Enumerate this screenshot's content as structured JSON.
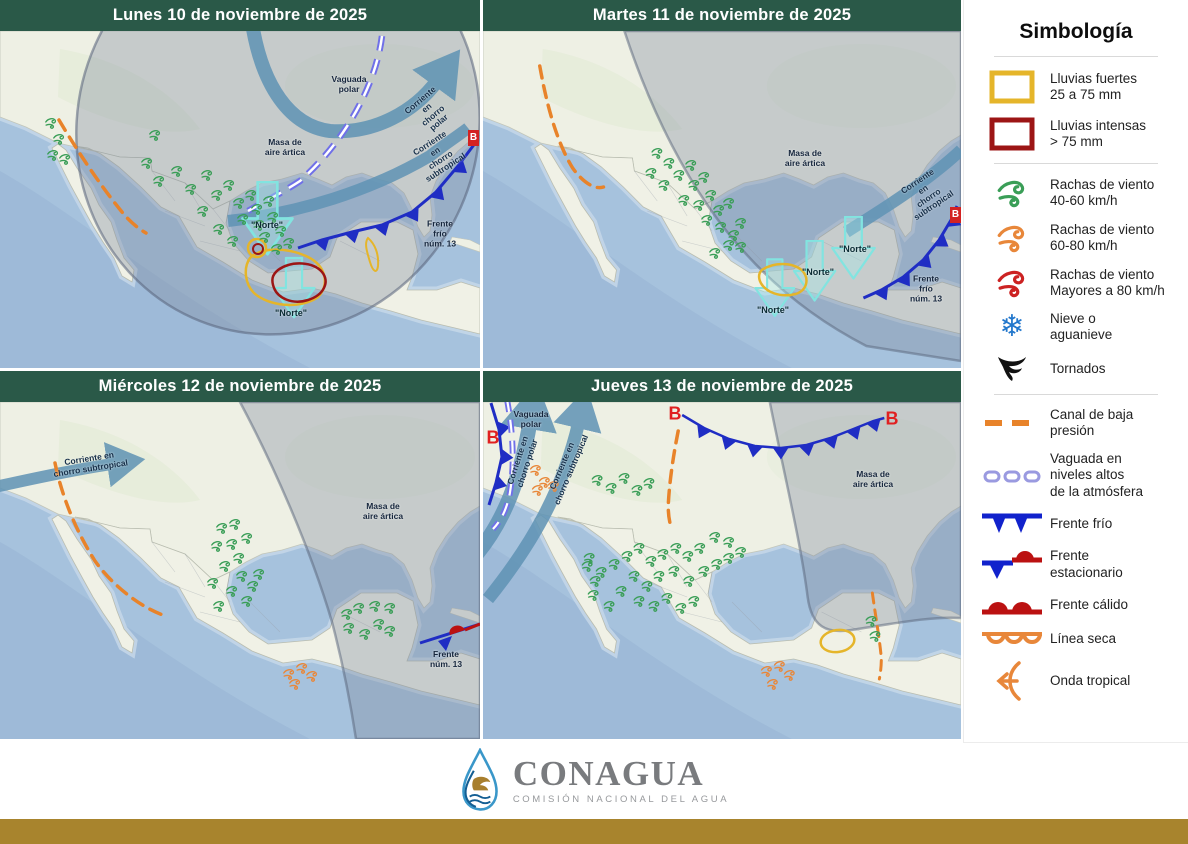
{
  "panels": [
    {
      "title": "Lunes 10 de noviembre de 2025",
      "labels": {
        "vaguada_polar": "Vaguada\npolar",
        "chorro_polar": "Corriente en\nchorro polar",
        "chorro_subtropical": "Corriente en\nchorro subtropical",
        "masa_artica": "Masa de\naire ártica",
        "norte1": "\"Norte\"",
        "norte2": "\"Norte\"",
        "frente": "Frente frío\nnúm. 13",
        "baja": "B"
      }
    },
    {
      "title": "Martes 11 de noviembre de 2025",
      "labels": {
        "masa_artica": "Masa de\naire ártica",
        "chorro_subtropical": "Corriente en\nchorro subtropical",
        "norte1": "\"Norte\"",
        "norte2": "\"Norte\"",
        "norte3": "\"Norte\"",
        "frente": "Frente frío\nnúm. 13",
        "baja": "B"
      }
    },
    {
      "title": "Miércoles 12 de noviembre de 2025",
      "labels": {
        "chorro_subtropical": "Corriente en\nchorro subtropical",
        "masa_artica": "Masa de\naire ártica",
        "frente": "Frente\nnúm. 13"
      }
    },
    {
      "title": "Jueves 13 de noviembre de 2025",
      "labels": {
        "baja1": "B",
        "baja2": "B",
        "baja3": "B",
        "vaguada_polar": "Vaguada\npolar",
        "chorro_polar": "Corriente en\nchorro polar",
        "chorro_subtropical": "Corriente en\nchorro subtropical",
        "masa_artica": "Masa de\naire ártica"
      }
    }
  ],
  "legend": {
    "title": "Simbología",
    "items": [
      {
        "icon": "rain-strong-box-icon",
        "label": "Lluvias fuertes\n25 a 75 mm"
      },
      {
        "icon": "rain-intense-box-icon",
        "label": "Lluvias intensas\n> 75 mm"
      },
      {
        "icon": "wind-gust-green-icon",
        "label": "Rachas de viento\n40-60 km/h"
      },
      {
        "icon": "wind-gust-orange-icon",
        "label": "Rachas de viento\n60-80 km/h"
      },
      {
        "icon": "wind-gust-red-icon",
        "label": "Rachas de viento\nMayores a 80 km/h"
      },
      {
        "icon": "snow-icon",
        "label": "Nieve o\naguanieve"
      },
      {
        "icon": "tornado-icon",
        "label": "Tornados"
      },
      {
        "icon": "low-pressure-channel-icon",
        "label": "Canal de baja\npresión"
      },
      {
        "icon": "upper-trough-icon",
        "label": "Vaguada en\nniveles altos\nde la atmósfera"
      },
      {
        "icon": "cold-front-icon",
        "label": "Frente frío"
      },
      {
        "icon": "stationary-front-icon",
        "label": "Frente\nestacionario"
      },
      {
        "icon": "warm-front-icon",
        "label": "Frente cálido"
      },
      {
        "icon": "dry-line-icon",
        "label": "Línea seca"
      },
      {
        "icon": "tropical-wave-icon",
        "label": "Onda tropical"
      }
    ]
  },
  "footer": {
    "brand": "CONAGUA",
    "subtitle": "COMISIÓN NACIONAL DEL AGUA"
  },
  "colors": {
    "header_green": "#2a5948",
    "gold_bar": "#a8842d",
    "rain_strong_yellow": "#e5b52a",
    "rain_intense_red": "#9c1515",
    "wind_40_60_green": "#3a9e57",
    "wind_60_80_orange": "#e8873a",
    "wind_80_red": "#cc2222",
    "snow_blue": "#2277cc",
    "cold_front_blue": "#1f2dc4",
    "warm_front_red": "#bb1111",
    "low_pressure_channel_orange": "#e8832a",
    "upper_trough_violet": "#8585e6",
    "jet_stream_blue": "#5f93b4",
    "norte_arrow_teal": "#82e4e0",
    "low_pressure_letter_red": "#e02020"
  }
}
